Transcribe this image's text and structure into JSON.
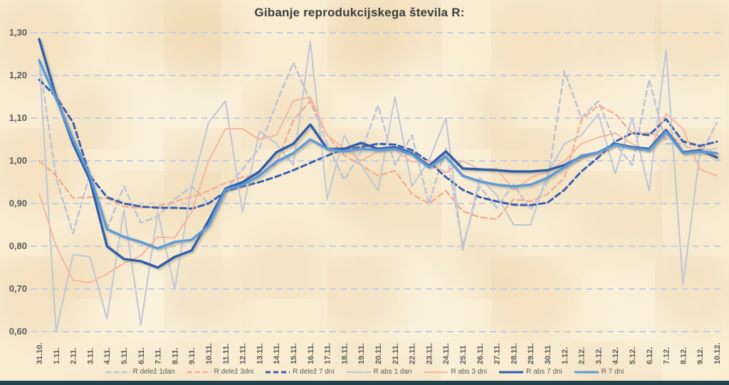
{
  "window": {
    "title": "Gibanje reprodukcijskega števila R:"
  },
  "chart_data": {
    "type": "line",
    "title": "Gibanje reprodukcijskega števila R:",
    "xlabel": "",
    "ylabel": "",
    "ylim": [
      0.6,
      1.3
    ],
    "grid": "horizontal-dashed",
    "legend_position": "bottom",
    "grid_color": "#c9cfdc",
    "axis_text_color": "#5c5c5c",
    "y_ticks": [
      {
        "label": "1,30",
        "value": 1.3
      },
      {
        "label": "1,20",
        "value": 1.2
      },
      {
        "label": "1,10",
        "value": 1.1
      },
      {
        "label": "1,00",
        "value": 1.0
      },
      {
        "label": "0,90",
        "value": 0.9
      },
      {
        "label": "0,80",
        "value": 0.8
      },
      {
        "label": "0,70",
        "value": 0.7
      },
      {
        "label": "0,60",
        "value": 0.6
      }
    ],
    "categories": [
      "31.10.",
      "1.11.",
      "2.11.",
      "3.11.",
      "4.11.",
      "5.11.",
      "6.11.",
      "7.11.",
      "8.11.",
      "9.11.",
      "10.11.",
      "11.11.",
      "12.11.",
      "13.11.",
      "14.11.",
      "15.11.",
      "16.11.",
      "17.11.",
      "18.11.",
      "19.11.",
      "20.11.",
      "21.11.",
      "22.11.",
      "23.11.",
      "24.11.",
      "25.11",
      "26.11.",
      "27.11.",
      "28.11.",
      "29.11.",
      "30.11",
      "1.12.",
      "2.12.",
      "3.12.",
      "4.12.",
      "5.12.",
      "6.12.",
      "7.12.",
      "8.12.",
      "9.12.",
      "10.12."
    ],
    "series": [
      {
        "name": "R delež 1dan",
        "key": "r-delez-1dan",
        "color": "#b9c3d6",
        "width": 2.4,
        "dash": true,
        "shadow": false,
        "values": [
          1.235,
          0.96,
          0.83,
          0.97,
          0.84,
          0.94,
          0.855,
          0.87,
          0.91,
          0.94,
          0.9,
          0.93,
          0.98,
          1.03,
          1.135,
          1.23,
          1.14,
          1.04,
          0.955,
          1.02,
          1.13,
          0.99,
          1.06,
          0.9,
          1.03,
          0.8,
          0.94,
          0.89,
          0.945,
          0.885,
          0.95,
          1.21,
          1.1,
          1.14,
          1.04,
          0.99,
          1.19,
          1.04,
          1.04,
          1.01,
          1.09
        ]
      },
      {
        "name": "R delež 3dni",
        "key": "r-delez-3dni",
        "color": "#f2ad92",
        "width": 2.4,
        "dash": true,
        "shadow": false,
        "values": [
          1.0,
          0.965,
          0.913,
          0.915,
          0.912,
          0.893,
          0.89,
          0.893,
          0.905,
          0.915,
          0.93,
          0.948,
          0.962,
          0.968,
          0.993,
          1.095,
          1.14,
          1.06,
          1.013,
          0.99,
          0.965,
          0.977,
          0.922,
          0.9,
          0.93,
          0.882,
          0.868,
          0.863,
          0.91,
          0.905,
          0.922,
          0.96,
          1.095,
          1.13,
          1.11,
          1.065,
          1.065,
          1.053,
          1.048,
          1.032,
          1.018
        ]
      },
      {
        "name": "R delež 7 dni",
        "key": "r-delez-7dni",
        "color": "#3a5fae",
        "width": 3,
        "dash": true,
        "shadow": false,
        "values": [
          1.19,
          1.15,
          1.09,
          0.965,
          0.915,
          0.9,
          0.893,
          0.89,
          0.89,
          0.888,
          0.9,
          0.928,
          0.94,
          0.95,
          0.963,
          0.978,
          0.995,
          1.012,
          1.028,
          1.032,
          1.04,
          1.038,
          1.025,
          0.998,
          0.962,
          0.932,
          0.915,
          0.905,
          0.897,
          0.896,
          0.902,
          0.932,
          0.975,
          1.008,
          1.045,
          1.065,
          1.06,
          1.098,
          1.045,
          1.035,
          1.045
        ]
      },
      {
        "name": "R abs 1 dan",
        "key": "r-abs-1dan",
        "color": "#bfc6d5",
        "width": 2,
        "dash": false,
        "shadow": false,
        "values": [
          1.24,
          0.6,
          0.78,
          0.775,
          0.63,
          0.885,
          0.615,
          0.88,
          0.7,
          0.94,
          1.09,
          1.14,
          0.88,
          1.07,
          1.04,
          0.99,
          1.28,
          0.91,
          1.06,
          0.99,
          0.93,
          1.15,
          0.94,
          1.0,
          1.1,
          0.79,
          0.96,
          0.92,
          0.85,
          0.85,
          0.97,
          1.04,
          1.06,
          1.11,
          0.97,
          1.1,
          0.93,
          1.26,
          0.71,
          1.02,
          1.03
        ]
      },
      {
        "name": "R abs 3 dni",
        "key": "r-abs-3dni",
        "color": "#f4b89e",
        "width": 2,
        "dash": false,
        "shadow": false,
        "values": [
          0.923,
          0.8,
          0.72,
          0.715,
          0.735,
          0.76,
          0.778,
          0.822,
          0.82,
          0.88,
          1.0,
          1.075,
          1.075,
          1.05,
          1.06,
          1.14,
          1.15,
          1.06,
          1.03,
          1.0,
          1.022,
          1.025,
          0.998,
          1.0,
          0.972,
          1.0,
          0.98,
          0.982,
          0.932,
          0.96,
          0.975,
          1.0,
          1.04,
          1.055,
          1.065,
          1.04,
          1.02,
          1.11,
          1.075,
          0.98,
          0.965
        ]
      },
      {
        "name": "R abs 7 dni",
        "key": "r-abs-7dni",
        "color": "#2f5da8",
        "width": 3.4,
        "dash": false,
        "shadow": true,
        "values": [
          1.285,
          1.15,
          1.04,
          0.955,
          0.8,
          0.77,
          0.765,
          0.75,
          0.775,
          0.79,
          0.86,
          0.935,
          0.95,
          0.975,
          1.02,
          1.04,
          1.085,
          1.028,
          1.028,
          1.042,
          1.028,
          1.032,
          1.018,
          0.988,
          1.022,
          0.982,
          0.98,
          0.978,
          0.975,
          0.975,
          0.978,
          0.99,
          1.01,
          1.02,
          1.04,
          1.032,
          1.028,
          1.072,
          1.02,
          1.025,
          1.008
        ]
      },
      {
        "name": "R 7 dni",
        "key": "r-7dni",
        "color": "#5b9bd5",
        "width": 3.4,
        "dash": false,
        "shadow": true,
        "values": [
          1.235,
          1.145,
          1.05,
          0.965,
          0.84,
          0.822,
          0.81,
          0.795,
          0.81,
          0.815,
          0.848,
          0.932,
          0.944,
          0.965,
          0.998,
          1.018,
          1.05,
          1.028,
          1.022,
          1.028,
          1.025,
          1.028,
          1.015,
          0.985,
          1.01,
          0.965,
          0.952,
          0.944,
          0.94,
          0.944,
          0.96,
          0.985,
          1.012,
          1.02,
          1.038,
          1.03,
          1.025,
          1.068,
          1.018,
          1.022,
          1.018
        ]
      }
    ]
  }
}
